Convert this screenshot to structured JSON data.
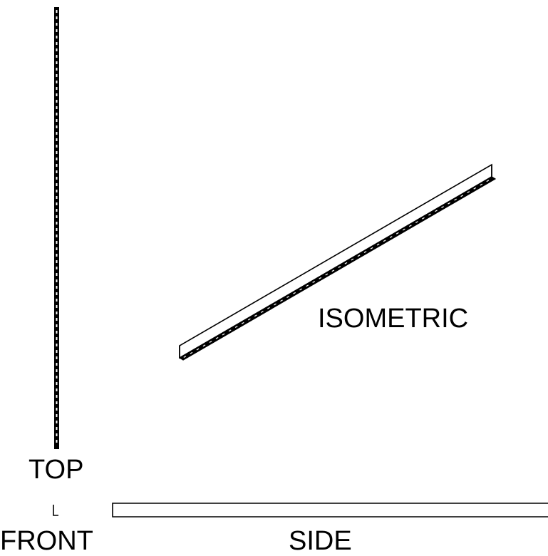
{
  "views": {
    "top": {
      "label": "TOP"
    },
    "front": {
      "label": "FRONT"
    },
    "side": {
      "label": "SIDE"
    },
    "isometric": {
      "label": "ISOMETRIC"
    }
  },
  "colors": {
    "line": "#000000",
    "background": "#ffffff"
  }
}
